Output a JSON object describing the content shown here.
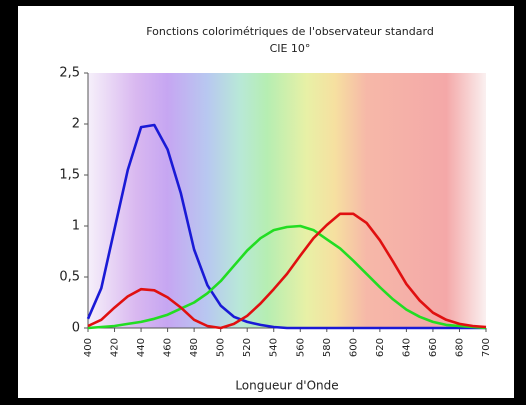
{
  "chart_data": {
    "type": "line",
    "title": "Fonctions colorimétriques de l'observateur standard",
    "subtitle": "CIE 10°",
    "x_label": "Longueur d'Onde",
    "x": [
      400,
      410,
      420,
      430,
      440,
      450,
      460,
      470,
      480,
      490,
      500,
      510,
      520,
      530,
      540,
      550,
      560,
      570,
      580,
      590,
      600,
      610,
      620,
      630,
      640,
      650,
      660,
      670,
      680,
      690,
      700
    ],
    "series": [
      {
        "color": "#1a1ad6",
        "values": [
          0.09,
          0.39,
          0.97,
          1.55,
          1.97,
          1.99,
          1.75,
          1.32,
          0.77,
          0.42,
          0.22,
          0.11,
          0.06,
          0.03,
          0.01,
          0.0,
          0,
          0,
          0,
          0,
          0,
          0,
          0,
          0,
          0,
          0,
          0,
          0,
          0,
          0,
          0
        ]
      },
      {
        "color": "#22dd22",
        "values": [
          0.0,
          0.01,
          0.02,
          0.04,
          0.06,
          0.09,
          0.13,
          0.19,
          0.25,
          0.34,
          0.46,
          0.61,
          0.76,
          0.88,
          0.96,
          0.99,
          1.0,
          0.96,
          0.87,
          0.78,
          0.66,
          0.53,
          0.4,
          0.28,
          0.18,
          0.11,
          0.06,
          0.03,
          0.02,
          0.01,
          0.0
        ]
      },
      {
        "color": "#e01010",
        "values": [
          0.02,
          0.08,
          0.2,
          0.31,
          0.38,
          0.37,
          0.3,
          0.2,
          0.08,
          0.02,
          0.0,
          0.04,
          0.12,
          0.24,
          0.38,
          0.53,
          0.71,
          0.88,
          1.01,
          1.12,
          1.12,
          1.03,
          0.86,
          0.65,
          0.43,
          0.27,
          0.15,
          0.08,
          0.04,
          0.02,
          0.01
        ]
      }
    ],
    "xlim": [
      400,
      700
    ],
    "xticks": [
      400,
      420,
      440,
      460,
      480,
      500,
      520,
      540,
      560,
      580,
      600,
      620,
      640,
      660,
      680,
      700
    ],
    "ylim": [
      0,
      2.5
    ],
    "yticks": [
      0,
      {
        "value": 0.5,
        "label": "0,5"
      },
      1,
      {
        "value": 1.5,
        "label": "1,5"
      },
      2,
      {
        "value": 2.5,
        "label": "2,5"
      }
    ]
  }
}
